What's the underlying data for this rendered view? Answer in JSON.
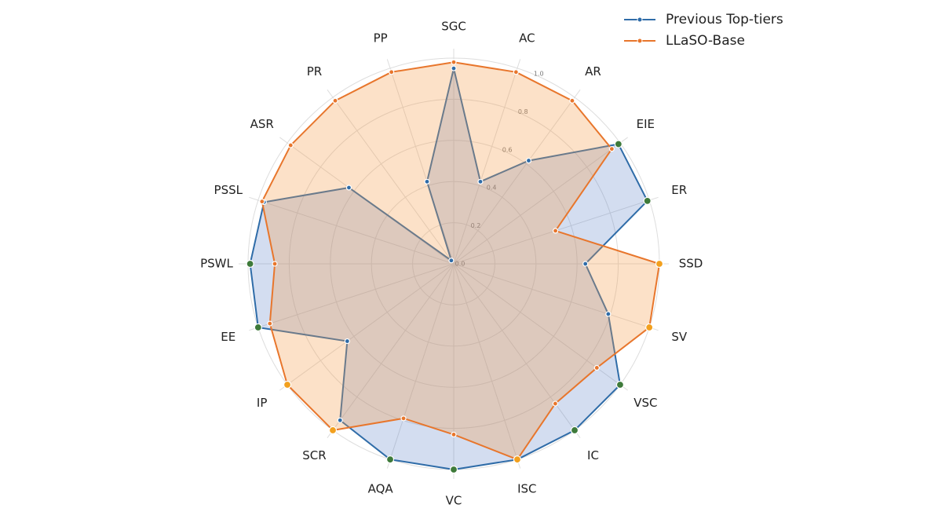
{
  "chart_data": {
    "type": "radar",
    "categories": [
      "SGC",
      "AC",
      "AR",
      "EIE",
      "ER",
      "SSD",
      "SV",
      "VSC",
      "IC",
      "ISC",
      "VC",
      "AQA",
      "SCR",
      "IP",
      "EE",
      "PSWL",
      "PSSL",
      "ASR",
      "PR",
      "PP"
    ],
    "series": [
      {
        "name": "Previous Top-tiers",
        "color": "#2f6ca8",
        "fill": "#4f78c4",
        "values": [
          0.95,
          0.42,
          0.62,
          0.99,
          0.99,
          0.64,
          0.79,
          1.0,
          1.0,
          1.0,
          1.0,
          1.0,
          0.94,
          0.64,
          1.0,
          0.99,
          0.97,
          0.63,
          0.02,
          0.42
        ]
      },
      {
        "name": "LLaSO-Base",
        "color": "#e8762c",
        "fill": "#f59a4a",
        "values": [
          0.98,
          0.98,
          0.98,
          0.95,
          0.52,
          1.0,
          1.0,
          0.86,
          0.84,
          1.0,
          0.83,
          0.79,
          1.0,
          1.0,
          0.94,
          0.87,
          0.98,
          0.98,
          0.98,
          0.98
        ]
      }
    ],
    "ylim": [
      0,
      1.0
    ],
    "yticks": [
      {
        "value": 0,
        "label": "0.0"
      },
      0.2,
      0.4,
      0.6,
      0.8,
      {
        "value": 1,
        "label": "1.0"
      }
    ],
    "grid": true,
    "legend": "upper right"
  }
}
